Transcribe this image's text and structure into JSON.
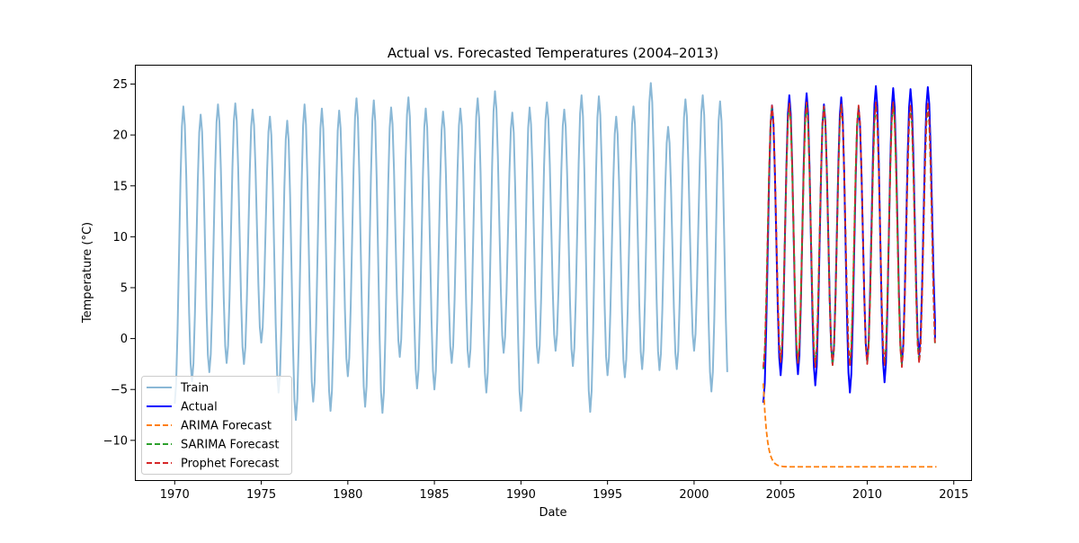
{
  "chart_data": {
    "type": "line",
    "title": "Actual vs. Forecasted Temperatures (2004–2013)",
    "xlabel": "Date",
    "ylabel": "Temperature (°C)",
    "xlim": [
      1967.7,
      2016.0
    ],
    "ylim": [
      -13.9,
      26.9
    ],
    "xticks": [
      1970,
      1975,
      1980,
      1985,
      1990,
      1995,
      2000,
      2005,
      2010,
      2015
    ],
    "yticks": [
      -10,
      -5,
      0,
      5,
      10,
      15,
      20,
      25
    ],
    "grid": false,
    "legend": {
      "position": "bottom-left",
      "entries": [
        "Train",
        "Actual",
        "ARIMA Forecast",
        "SARIMA Forecast",
        "Prophet Forecast"
      ]
    },
    "series": [
      {
        "name": "Train",
        "color": "#8ab8d6",
        "style": "solid",
        "x_start": 1970.0,
        "x_step_months": 1,
        "annual_peaks": [
          22.8,
          22.0,
          23.0,
          23.1,
          22.5,
          21.8,
          21.4,
          23.0,
          22.6,
          22.4,
          23.6,
          23.4,
          22.7,
          23.7,
          22.6,
          22.3,
          22.6,
          23.6,
          24.3,
          22.2,
          22.7,
          23.2,
          22.5,
          23.9,
          23.8,
          21.8,
          22.8,
          25.1,
          20.8,
          23.5,
          23.9,
          23.3
        ],
        "annual_troughs": [
          -6.4,
          -4.2,
          -3.3,
          -2.4,
          -2.5,
          -0.4,
          -5.3,
          -8.0,
          -6.2,
          -7.1,
          -3.7,
          -6.7,
          -7.3,
          -1.8,
          -4.9,
          -5.0,
          -2.4,
          -2.8,
          -5.3,
          -1.4,
          -7.1,
          -2.4,
          -1.2,
          -2.7,
          -7.2,
          -3.6,
          -3.8,
          -3.0,
          -3.1,
          -3.0,
          -1.2,
          -5.2
        ]
      },
      {
        "name": "Actual",
        "color": "#0000ff",
        "style": "solid",
        "x_start": 2004.0,
        "x_step_months": 1,
        "annual_peaks": [
          22.9,
          23.9,
          24.1,
          23.0,
          23.7,
          22.7,
          24.8,
          24.6,
          24.5,
          24.7
        ],
        "annual_troughs": [
          -6.3,
          -3.6,
          -3.5,
          -4.6,
          -2.5,
          -5.3,
          -2.2,
          -4.3,
          -2.4,
          -1.6
        ],
        "end_value": 0.0
      },
      {
        "name": "ARIMA Forecast",
        "color": "#ff7f0e",
        "style": "dashed",
        "x_start": 2004.0,
        "start_value": -4.4,
        "plateau": -12.6,
        "decay_months": 4
      },
      {
        "name": "SARIMA Forecast",
        "color": "#2ca02c",
        "style": "dashed",
        "x_start": 2004.0,
        "x_step_months": 1,
        "annual_peaks": [
          22.8,
          23.0,
          22.9,
          22.8,
          22.9,
          22.7,
          22.9,
          23.1,
          22.7,
          22.8
        ],
        "annual_troughs": [
          -3.0,
          -2.2,
          -2.4,
          -2.6,
          -2.6,
          -2.5,
          -2.4,
          -2.5,
          -2.6,
          -2.3
        ]
      },
      {
        "name": "Prophet Forecast",
        "color": "#d62728",
        "style": "dashed",
        "x_start": 2004.0,
        "x_step_months": 1,
        "annual_peaks": [
          22.9,
          23.1,
          23.2,
          22.8,
          23.0,
          22.9,
          23.2,
          23.2,
          23.0,
          23.2
        ],
        "annual_troughs": [
          -2.8,
          -2.3,
          -2.4,
          -2.8,
          -2.6,
          -2.7,
          -2.5,
          -2.6,
          -2.8,
          -2.4
        ]
      }
    ]
  }
}
